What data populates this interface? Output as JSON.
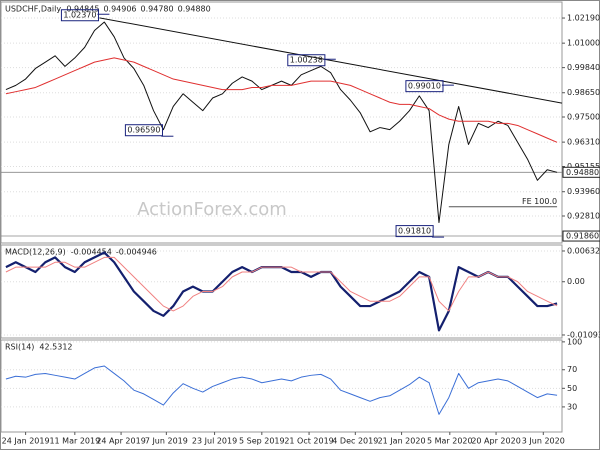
{
  "chart_data": [
    {
      "type": "line",
      "title": "USDCHF,Daily",
      "readouts": [
        "0.94845",
        "0.94906",
        "0.94780",
        "0.94880"
      ],
      "watermark": "ActionForex.com",
      "xlim": [
        -0.5,
        56.5
      ],
      "ylim": [
        0.9153,
        1.0295
      ],
      "yticks": [
        {
          "value": 1.0219,
          "label": "1.02190"
        },
        {
          "value": 1.01,
          "label": "1.01000"
        },
        {
          "value": 0.9984,
          "label": "0.99840"
        },
        {
          "value": 0.9865,
          "label": "0.98650"
        },
        {
          "value": 0.975,
          "label": "0.97500"
        },
        {
          "value": 0.9631,
          "label": "0.96310"
        },
        {
          "value": 0.95155,
          "label": "0.95155"
        },
        {
          "value": 0.9396,
          "label": "0.93960"
        },
        {
          "value": 0.9281,
          "label": "0.92810"
        }
      ],
      "series": [
        {
          "color": "#111111",
          "values": [
            0.988,
            0.99,
            0.993,
            0.998,
            1.001,
            1.004,
            0.999,
            1.003,
            1.008,
            1.016,
            1.02,
            1.013,
            1.003,
            0.998,
            0.99,
            0.978,
            0.969,
            0.98,
            0.986,
            0.982,
            0.978,
            0.984,
            0.986,
            0.991,
            0.994,
            0.992,
            0.988,
            0.99,
            0.992,
            0.99,
            0.995,
            0.997,
            0.999,
            0.996,
            0.988,
            0.983,
            0.977,
            0.968,
            0.97,
            0.969,
            0.973,
            0.978,
            0.985,
            0.978,
            0.925,
            0.962,
            0.98,
            0.962,
            0.972,
            0.97,
            0.973,
            0.971,
            0.963,
            0.955,
            0.945,
            0.95,
            0.9488
          ]
        },
        {
          "color": "#e03030",
          "values": [
            0.986,
            0.987,
            0.988,
            0.989,
            0.991,
            0.993,
            0.995,
            0.997,
            0.999,
            1.001,
            1.002,
            1.003,
            1.002,
            1.001,
            0.999,
            0.997,
            0.995,
            0.993,
            0.992,
            0.991,
            0.99,
            0.989,
            0.988,
            0.988,
            0.988,
            0.989,
            0.989,
            0.99,
            0.99,
            0.99,
            0.991,
            0.992,
            0.992,
            0.992,
            0.991,
            0.99,
            0.988,
            0.986,
            0.984,
            0.982,
            0.981,
            0.981,
            0.98,
            0.979,
            0.976,
            0.974,
            0.973,
            0.973,
            0.973,
            0.973,
            0.972,
            0.972,
            0.971,
            0.969,
            0.967,
            0.965,
            0.963
          ]
        }
      ],
      "trendline": {
        "color": "#111111",
        "x": [
          9.5,
          56.5
        ],
        "values": [
          1.022,
          0.9816
        ]
      },
      "fe": {
        "label": "FE 100.0",
        "value": 0.9325,
        "x": [
          45,
          56
        ],
        "color": "#555555"
      },
      "price_markers": [
        {
          "value": 0.9488,
          "label": "0.94880"
        },
        {
          "value": 0.9186,
          "label": "0.91860"
        }
      ],
      "annotations": [
        {
          "x": 9.5,
          "value": 1.0237,
          "label": "1.02370"
        },
        {
          "x": 16,
          "value": 0.9659,
          "label": "0.96590"
        },
        {
          "x": 32.5,
          "value": 1.00238,
          "label": "1.00238"
        },
        {
          "x": 44.5,
          "value": 0.9901,
          "label": "0.99010"
        },
        {
          "x": 43.5,
          "value": 0.9181,
          "label": "0.91810"
        }
      ]
    },
    {
      "type": "line",
      "title": "MACD(12,26,9)",
      "readouts": [
        "-0.004454",
        "-0.004946"
      ],
      "xlim": [
        -0.5,
        56.5
      ],
      "ylim": [
        -0.01156,
        0.00755
      ],
      "yticks": [
        0.006321,
        {
          "value": 0,
          "label": "0.00"
        },
        -0.010939
      ],
      "series": [
        {
          "color": "#14206e",
          "width": 2.2,
          "values": [
            0.003,
            0.004,
            0.003,
            0.002,
            0.004,
            0.005,
            0.003,
            0.002,
            0.004,
            0.005,
            0.006,
            0.004,
            0.001,
            -0.002,
            -0.004,
            -0.006,
            -0.007,
            -0.005,
            -0.002,
            -0.001,
            -0.002,
            -0.002,
            0.0,
            0.002,
            0.003,
            0.002,
            0.003,
            0.003,
            0.003,
            0.002,
            0.002,
            0.001,
            0.002,
            0.002,
            -0.001,
            -0.003,
            -0.005,
            -0.005,
            -0.004,
            -0.003,
            -0.002,
            0.0,
            0.002,
            0.001,
            -0.01,
            -0.006,
            0.003,
            0.002,
            0.001,
            0.002,
            0.001,
            0.001,
            -0.001,
            -0.003,
            -0.005,
            -0.005,
            -0.004454
          ]
        },
        {
          "color": "#f08080",
          "width": 1,
          "values": [
            0.002,
            0.003,
            0.003,
            0.003,
            0.003,
            0.004,
            0.004,
            0.003,
            0.003,
            0.004,
            0.005,
            0.005,
            0.003,
            0.001,
            -0.001,
            -0.003,
            -0.005,
            -0.006,
            -0.005,
            -0.003,
            -0.002,
            -0.002,
            -0.001,
            0.001,
            0.002,
            0.002,
            0.003,
            0.003,
            0.003,
            0.003,
            0.002,
            0.002,
            0.002,
            0.002,
            0.0,
            -0.002,
            -0.003,
            -0.004,
            -0.004,
            -0.004,
            -0.003,
            -0.001,
            0.001,
            0.001,
            -0.004,
            -0.006,
            -0.002,
            0.001,
            0.001,
            0.002,
            0.001,
            0.001,
            0.0,
            -0.002,
            -0.003,
            -0.004,
            -0.004946
          ]
        }
      ]
    },
    {
      "type": "line",
      "title": "RSI(14)",
      "readouts": [
        "42.5312"
      ],
      "xlim": [
        -0.5,
        56.5
      ],
      "ylim": [
        3,
        102
      ],
      "yticks": [
        100,
        70,
        50,
        30
      ],
      "series": [
        {
          "color": "#3b6fd6",
          "width": 1,
          "values": [
            60,
            63,
            62,
            65,
            66,
            64,
            62,
            60,
            66,
            72,
            74,
            66,
            58,
            48,
            44,
            38,
            32,
            45,
            55,
            50,
            46,
            52,
            56,
            60,
            62,
            60,
            56,
            58,
            60,
            58,
            62,
            64,
            65,
            60,
            48,
            44,
            40,
            36,
            40,
            42,
            48,
            54,
            62,
            56,
            22,
            40,
            66,
            50,
            56,
            58,
            60,
            58,
            52,
            46,
            40,
            44,
            42.5312
          ]
        }
      ],
      "xticks": [
        {
          "value": 2,
          "label": "24 Jan 2019"
        },
        {
          "value": 7,
          "label": "11 Mar 2019"
        },
        {
          "value": 11.7,
          "label": "24 Apr 2019"
        },
        {
          "value": 16.3,
          "label": "7 Jun 2019"
        },
        {
          "value": 21.2,
          "label": "23 Jul 2019"
        },
        {
          "value": 26,
          "label": "5 Sep 2019"
        },
        {
          "value": 30.8,
          "label": "21 Oct 2019"
        },
        {
          "value": 35.5,
          "label": "4 Dec 2019"
        },
        {
          "value": 40.2,
          "label": "21 Jan 2020"
        },
        {
          "value": 45.1,
          "label": "5 Mar 2020"
        },
        {
          "value": 49.8,
          "label": "20 Apr 2020"
        },
        {
          "value": 54.6,
          "label": "3 Jun 2020"
        }
      ]
    }
  ]
}
